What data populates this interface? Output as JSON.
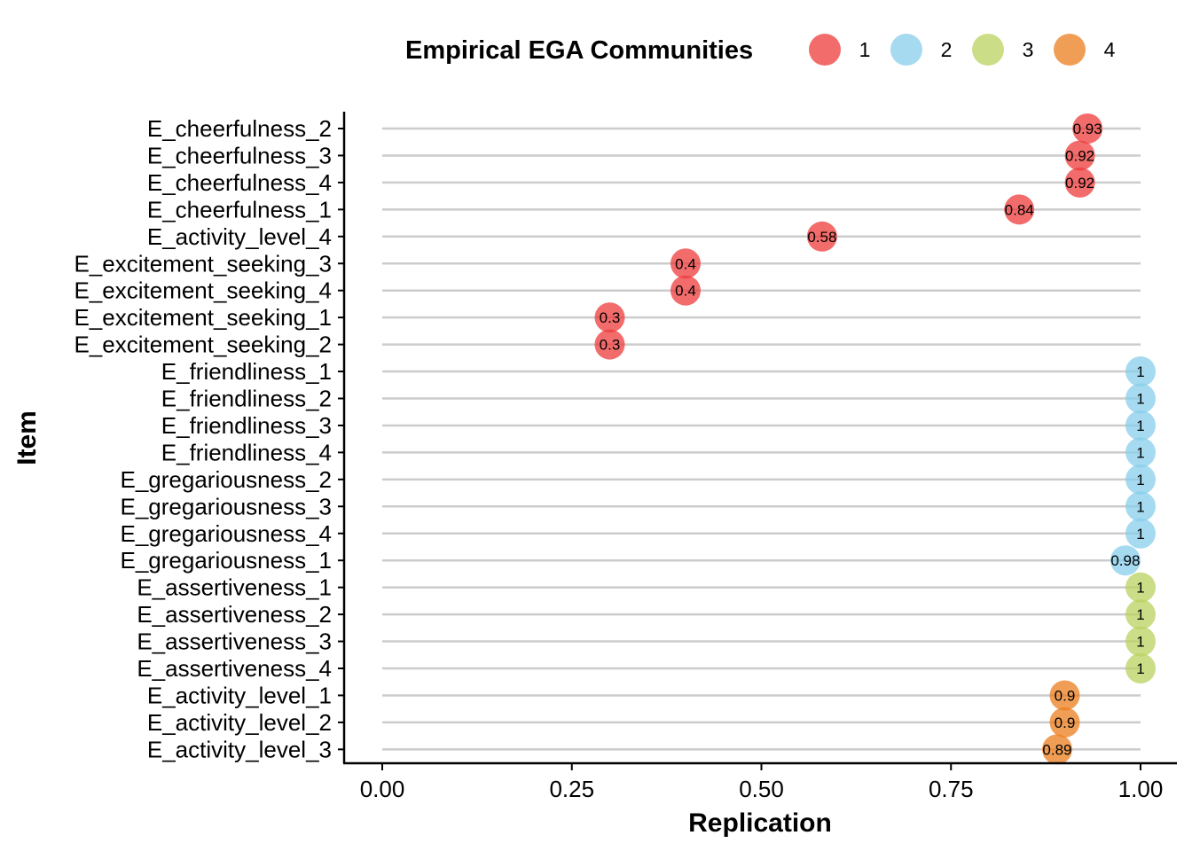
{
  "chart_data": {
    "type": "scatter",
    "title": "",
    "xlabel": "Replication",
    "ylabel": "Item",
    "xlim": [
      0,
      1
    ],
    "x_ticks": [
      "0.00",
      "0.25",
      "0.50",
      "0.75",
      "1.00"
    ],
    "grid": "horizontal lines per item",
    "legend": {
      "title": "Empirical EGA Communities",
      "position": "top",
      "entries": [
        {
          "label": "1",
          "color": "#EE3B3B"
        },
        {
          "label": "2",
          "color": "#87CEEB"
        },
        {
          "label": "3",
          "color": "#B9D25F"
        },
        {
          "label": "4",
          "color": "#EB7D1E"
        }
      ]
    },
    "items": [
      {
        "item": "E_cheerfulness_2",
        "value": 0.93,
        "label": "0.93",
        "community": "1"
      },
      {
        "item": "E_cheerfulness_3",
        "value": 0.92,
        "label": "0.92",
        "community": "1"
      },
      {
        "item": "E_cheerfulness_4",
        "value": 0.92,
        "label": "0.92",
        "community": "1"
      },
      {
        "item": "E_cheerfulness_1",
        "value": 0.84,
        "label": "0.84",
        "community": "1"
      },
      {
        "item": "E_activity_level_4",
        "value": 0.58,
        "label": "0.58",
        "community": "1"
      },
      {
        "item": "E_excitement_seeking_3",
        "value": 0.4,
        "label": "0.4",
        "community": "1"
      },
      {
        "item": "E_excitement_seeking_4",
        "value": 0.4,
        "label": "0.4",
        "community": "1"
      },
      {
        "item": "E_excitement_seeking_1",
        "value": 0.3,
        "label": "0.3",
        "community": "1"
      },
      {
        "item": "E_excitement_seeking_2",
        "value": 0.3,
        "label": "0.3",
        "community": "1"
      },
      {
        "item": "E_friendliness_1",
        "value": 1.0,
        "label": "1",
        "community": "2"
      },
      {
        "item": "E_friendliness_2",
        "value": 1.0,
        "label": "1",
        "community": "2"
      },
      {
        "item": "E_friendliness_3",
        "value": 1.0,
        "label": "1",
        "community": "2"
      },
      {
        "item": "E_friendliness_4",
        "value": 1.0,
        "label": "1",
        "community": "2"
      },
      {
        "item": "E_gregariousness_2",
        "value": 1.0,
        "label": "1",
        "community": "2"
      },
      {
        "item": "E_gregariousness_3",
        "value": 1.0,
        "label": "1",
        "community": "2"
      },
      {
        "item": "E_gregariousness_4",
        "value": 1.0,
        "label": "1",
        "community": "2"
      },
      {
        "item": "E_gregariousness_1",
        "value": 0.98,
        "label": "0.98",
        "community": "2"
      },
      {
        "item": "E_assertiveness_1",
        "value": 1.0,
        "label": "1",
        "community": "3"
      },
      {
        "item": "E_assertiveness_2",
        "value": 1.0,
        "label": "1",
        "community": "3"
      },
      {
        "item": "E_assertiveness_3",
        "value": 1.0,
        "label": "1",
        "community": "3"
      },
      {
        "item": "E_assertiveness_4",
        "value": 1.0,
        "label": "1",
        "community": "3"
      },
      {
        "item": "E_activity_level_1",
        "value": 0.9,
        "label": "0.9",
        "community": "4"
      },
      {
        "item": "E_activity_level_2",
        "value": 0.9,
        "label": "0.9",
        "community": "4"
      },
      {
        "item": "E_activity_level_3",
        "value": 0.89,
        "label": "0.89",
        "community": "4"
      }
    ]
  }
}
